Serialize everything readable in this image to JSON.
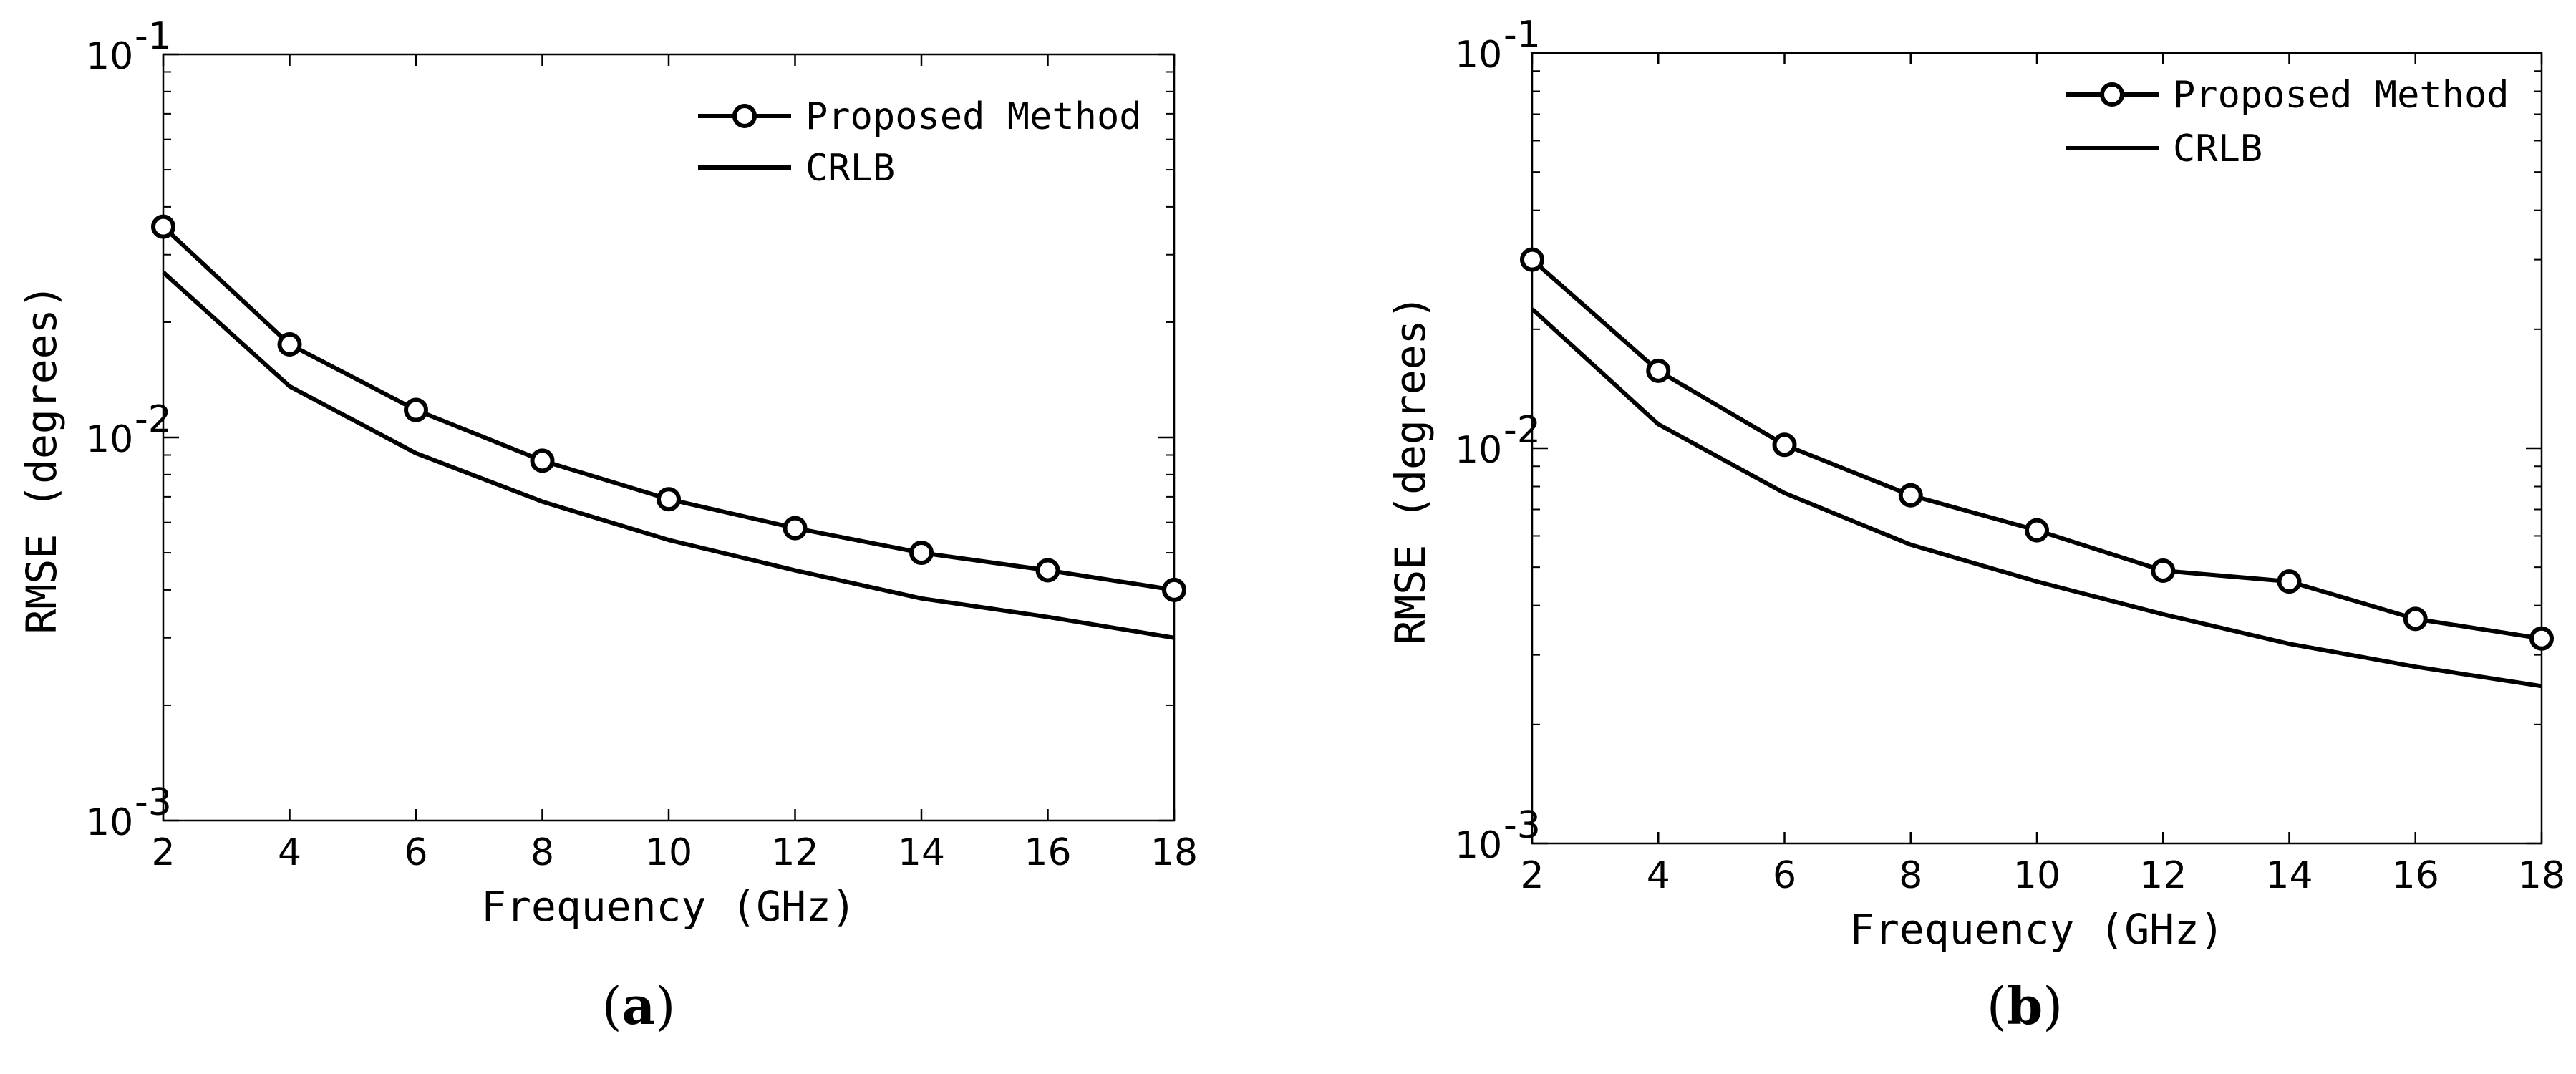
{
  "chart_data": [
    {
      "type": "line",
      "panel_label": "(a)",
      "panel_letter": "a",
      "xlabel": "Frequency (GHz)",
      "ylabel": "RMSE (degrees)",
      "yscale": "log",
      "xlim": [
        2,
        18
      ],
      "ylim": [
        0.001,
        0.1
      ],
      "xticks": [
        2,
        4,
        6,
        8,
        10,
        12,
        14,
        16,
        18
      ],
      "x": [
        2,
        4,
        6,
        8,
        10,
        12,
        14,
        16,
        18
      ],
      "legend_position": "top-right",
      "series": [
        {
          "name": "Proposed Method",
          "marker": "circle",
          "values": [
            0.0355,
            0.0175,
            0.0118,
            0.0087,
            0.0069,
            0.0058,
            0.005,
            0.0045,
            0.004
          ]
        },
        {
          "name": "CRLB",
          "marker": "none",
          "values": [
            0.027,
            0.0136,
            0.0091,
            0.0068,
            0.0054,
            0.0045,
            0.0038,
            0.0034,
            0.003
          ]
        }
      ]
    },
    {
      "type": "line",
      "panel_label": "(b)",
      "panel_letter": "b",
      "xlabel": "Frequency (GHz)",
      "ylabel": "RMSE (degrees)",
      "yscale": "log",
      "xlim": [
        2,
        18
      ],
      "ylim": [
        0.001,
        0.1
      ],
      "xticks": [
        2,
        4,
        6,
        8,
        10,
        12,
        14,
        16,
        18
      ],
      "x": [
        2,
        4,
        6,
        8,
        10,
        12,
        14,
        16,
        18
      ],
      "legend_position": "top-right",
      "series": [
        {
          "name": "Proposed Method",
          "marker": "circle",
          "values": [
            0.03,
            0.0157,
            0.0102,
            0.0076,
            0.0062,
            0.0049,
            0.0046,
            0.0037,
            0.0033
          ]
        },
        {
          "name": "CRLB",
          "marker": "none",
          "values": [
            0.0225,
            0.0115,
            0.0077,
            0.0057,
            0.0046,
            0.0038,
            0.0032,
            0.0028,
            0.0025
          ]
        }
      ]
    }
  ],
  "ytick_labels": [
    "10",
    "10",
    "10"
  ],
  "ytick_exponents": [
    "-3",
    "-2",
    "-1"
  ]
}
